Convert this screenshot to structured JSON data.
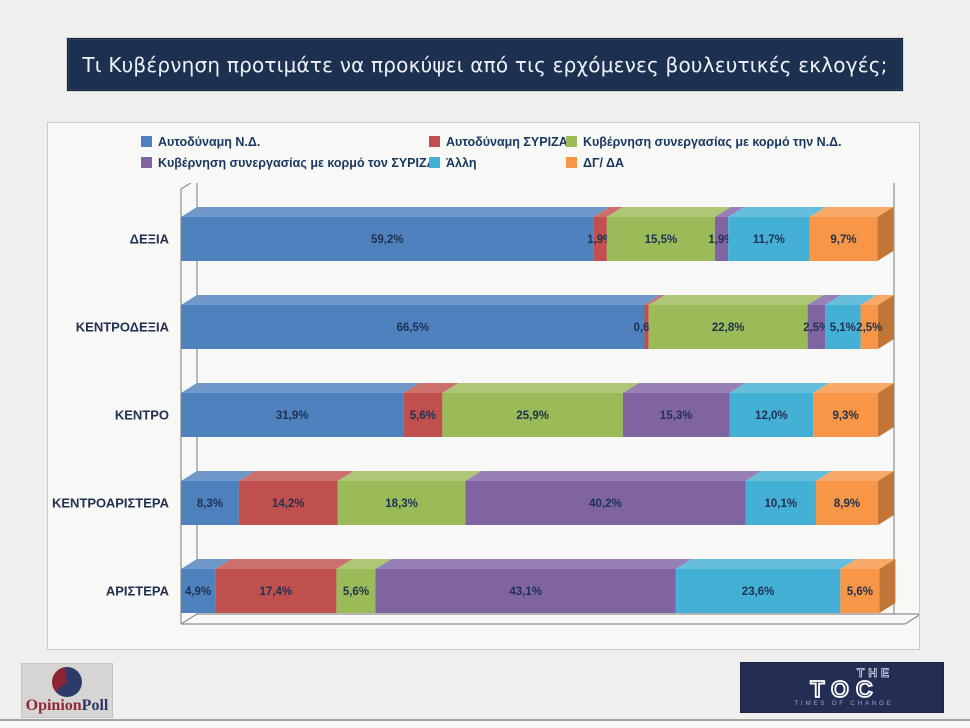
{
  "title": "Τι Κυβέρνηση προτιμάτε να προκύψει από τις ερχόμενες βουλευτικές εκλογές;",
  "chart_data": {
    "type": "bar",
    "orientation": "horizontal",
    "stacked": true,
    "unit": "%",
    "xlim": [
      0,
      100
    ],
    "grid": false,
    "legend_position": "top",
    "value_label_format": "comma-decimal-percent",
    "categories": [
      "ΔΕΞΙΑ",
      "ΚΕΝΤΡΟΔΕΞΙΑ",
      "ΚΕΝΤΡΟ",
      "ΚΕΝΤΡΟΑΡΙΣΤΕΡΑ",
      "ΑΡΙΣΤΕΡΑ"
    ],
    "series": [
      {
        "name": "Αυτοδύναμη Ν.Δ.",
        "color": "#4E81BD",
        "values": [
          59.2,
          66.5,
          31.9,
          8.3,
          4.9
        ]
      },
      {
        "name": "Αυτοδύναμη ΣΥΡΙΖΑ",
        "color": "#C0504D",
        "values": [
          1.9,
          0.6,
          5.6,
          14.2,
          17.4
        ]
      },
      {
        "name": "Κυβέρνηση συνεργασίας με κορμό την Ν.Δ.",
        "color": "#9BBB59",
        "values": [
          15.5,
          22.8,
          25.9,
          18.3,
          5.6
        ]
      },
      {
        "name": "Κυβέρνηση συνεργασίας με κορμό τον ΣΥΡΙΖΑ",
        "color": "#8064A2",
        "values": [
          1.9,
          2.5,
          15.3,
          40.2,
          43.1
        ]
      },
      {
        "name": "Άλλη",
        "color": "#45B0D6",
        "values": [
          11.7,
          5.1,
          12.0,
          10.1,
          23.6
        ]
      },
      {
        "name": "ΔΓ/ ΔΑ",
        "color": "#F79646",
        "values": [
          9.7,
          2.5,
          9.3,
          8.9,
          5.6
        ]
      }
    ]
  },
  "footer": {
    "opinionpoll": {
      "opinion": "Opinion",
      "poll": "Poll"
    },
    "toc": {
      "the": "THE",
      "toc": "TOC",
      "tagline": "TIMES OF CHANGE"
    }
  },
  "colors": {
    "title_bar": "#1C3150",
    "text_dark_navy": "#17375E",
    "page_bg": "#EFEFEE"
  }
}
